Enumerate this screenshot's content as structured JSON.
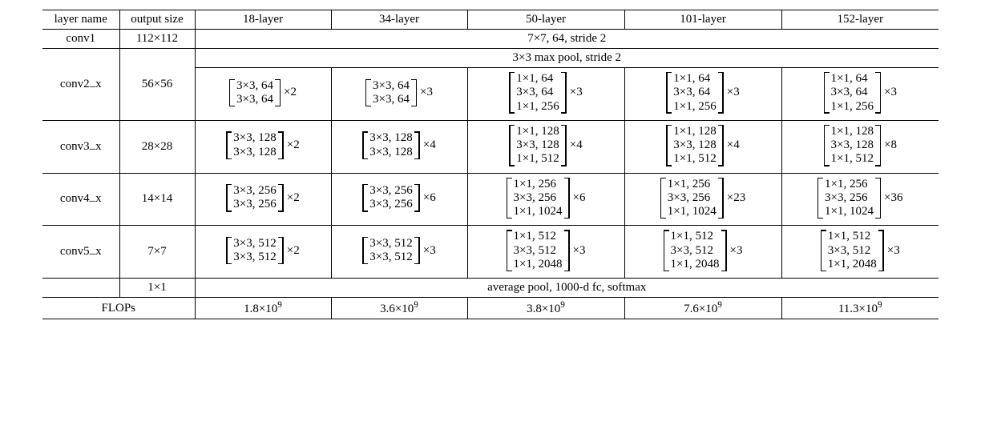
{
  "colors": {
    "bg": "#ffffff",
    "fg": "#000000",
    "rule": "#000000"
  },
  "font": {
    "family": "Times New Roman",
    "size_pt": 11
  },
  "table": {
    "headers": [
      "layer name",
      "output size",
      "18-layer",
      "34-layer",
      "50-layer",
      "101-layer",
      "152-layer"
    ],
    "conv1": {
      "name": "conv1",
      "out": "112×112",
      "spec": "7×7, 64, stride 2"
    },
    "pool1": "3×3 max pool, stride 2",
    "stages": [
      {
        "name": "conv2_x",
        "out": "56×56",
        "cells": [
          {
            "lines": [
              "3×3, 64",
              "3×3, 64"
            ],
            "mult": "×2"
          },
          {
            "lines": [
              "3×3, 64",
              "3×3, 64"
            ],
            "mult": "×3"
          },
          {
            "lines": [
              "1×1, 64",
              "3×3, 64",
              "1×1, 256"
            ],
            "mult": "×3"
          },
          {
            "lines": [
              "1×1, 64",
              "3×3, 64",
              "1×1, 256"
            ],
            "mult": "×3"
          },
          {
            "lines": [
              "1×1, 64",
              "3×3, 64",
              "1×1, 256"
            ],
            "mult": "×3"
          }
        ]
      },
      {
        "name": "conv3_x",
        "out": "28×28",
        "cells": [
          {
            "lines": [
              "3×3, 128",
              "3×3, 128"
            ],
            "mult": "×2"
          },
          {
            "lines": [
              "3×3, 128",
              "3×3, 128"
            ],
            "mult": "×4"
          },
          {
            "lines": [
              "1×1, 128",
              "3×3, 128",
              "1×1, 512"
            ],
            "mult": "×4"
          },
          {
            "lines": [
              "1×1, 128",
              "3×3, 128",
              "1×1, 512"
            ],
            "mult": "×4"
          },
          {
            "lines": [
              "1×1, 128",
              "3×3, 128",
              "1×1, 512"
            ],
            "mult": "×8"
          }
        ]
      },
      {
        "name": "conv4_x",
        "out": "14×14",
        "cells": [
          {
            "lines": [
              "3×3, 256",
              "3×3, 256"
            ],
            "mult": "×2"
          },
          {
            "lines": [
              "3×3, 256",
              "3×3, 256"
            ],
            "mult": "×6"
          },
          {
            "lines": [
              "1×1, 256",
              "3×3, 256",
              "1×1, 1024"
            ],
            "mult": "×6"
          },
          {
            "lines": [
              "1×1, 256",
              "3×3, 256",
              "1×1, 1024"
            ],
            "mult": "×23"
          },
          {
            "lines": [
              "1×1, 256",
              "3×3, 256",
              "1×1, 1024"
            ],
            "mult": "×36"
          }
        ]
      },
      {
        "name": "conv5_x",
        "out": "7×7",
        "cells": [
          {
            "lines": [
              "3×3, 512",
              "3×3, 512"
            ],
            "mult": "×2"
          },
          {
            "lines": [
              "3×3, 512",
              "3×3, 512"
            ],
            "mult": "×3"
          },
          {
            "lines": [
              "1×1, 512",
              "3×3, 512",
              "1×1, 2048"
            ],
            "mult": "×3"
          },
          {
            "lines": [
              "1×1, 512",
              "3×3, 512",
              "1×1, 2048"
            ],
            "mult": "×3"
          },
          {
            "lines": [
              "1×1, 512",
              "3×3, 512",
              "1×1, 2048"
            ],
            "mult": "×3"
          }
        ]
      }
    ],
    "final": {
      "out": "1×1",
      "spec": "average pool, 1000-d fc, softmax"
    },
    "flops": {
      "label": "FLOPs",
      "values_mantissa": [
        "1.8",
        "3.6",
        "3.8",
        "7.6",
        "11.3"
      ],
      "exponent": "9"
    }
  }
}
